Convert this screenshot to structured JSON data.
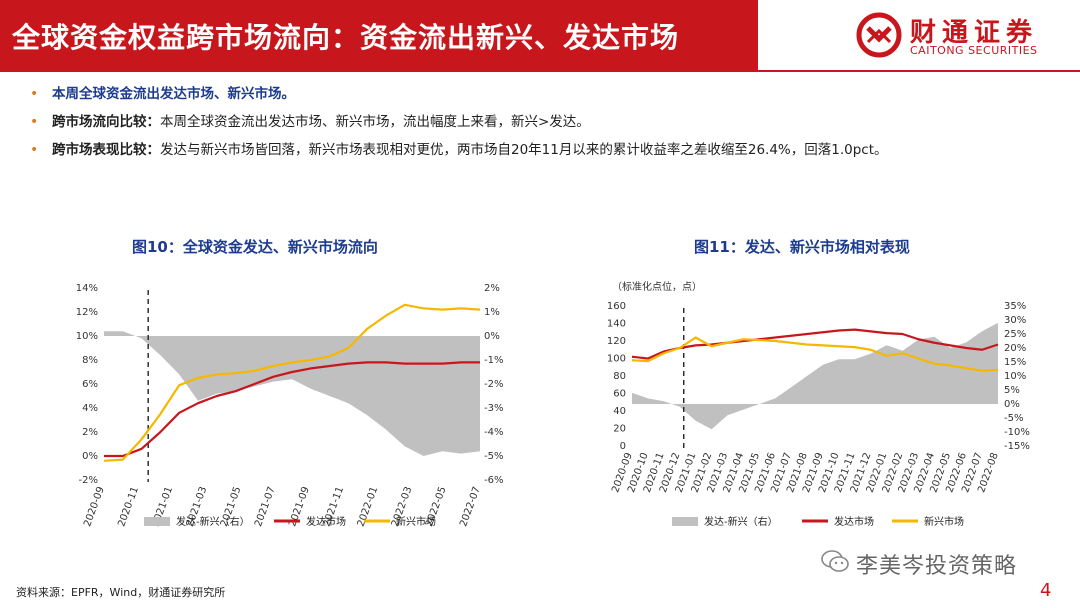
{
  "header": {
    "title": "全球资金权益跨市场流向：资金流出新兴、发达市场",
    "logo_cn": "财通证券",
    "logo_en": "CAITONG SECURITIES",
    "brand_color": "#c8161d"
  },
  "bullets": [
    {
      "label": "本周全球资金流出发达市场、新兴市场。",
      "text": ""
    },
    {
      "label": "跨市场流向比较：",
      "text": "本周全球资金流出发达市场、新兴市场，流出幅度上来看，新兴>发达。"
    },
    {
      "label": "跨市场表现比较：",
      "text": "发达与新兴市场皆回落，新兴市场表现相对更优，两市场自20年11月以来的累计收益率之差收缩至26.4%，回落1.0pct。"
    }
  ],
  "figures": {
    "fig10_title": "图10：全球资金发达、新兴市场流向",
    "fig11_title": "图11：发达、新兴市场相对表现",
    "fig11_unit": "（标准化点位，点）"
  },
  "chart_data": [
    {
      "type": "line",
      "title": "图10：全球资金发达、新兴市场流向",
      "x_ticks": [
        "2020-09",
        "2020-11",
        "2021-01",
        "2021-03",
        "2021-05",
        "2021-07",
        "2021-09",
        "2021-11",
        "2022-01",
        "2022-03",
        "2022-05",
        "2022-07"
      ],
      "y_left_ticks": [
        "-2%",
        "0%",
        "2%",
        "4%",
        "6%",
        "8%",
        "10%",
        "12%",
        "14%"
      ],
      "y_right_ticks": [
        "-6%",
        "-5%",
        "-4%",
        "-3%",
        "-2%",
        "-1%",
        "0%",
        "1%",
        "2%"
      ],
      "ylim_left": [
        -2,
        14
      ],
      "ylim_right": [
        -6,
        2
      ],
      "series": [
        {
          "name": "发达-新兴（右）",
          "axis": "right",
          "style": "area",
          "color": "#c0c0c0",
          "values": [
            0.2,
            0.2,
            -0.1,
            -0.8,
            -1.6,
            -2.7,
            -2.4,
            -2.3,
            -2.1,
            -1.9,
            -1.8,
            -2.2,
            -2.5,
            -2.8,
            -3.3,
            -3.9,
            -4.6,
            -5.0,
            -4.8,
            -4.9,
            -4.8
          ]
        },
        {
          "name": "发达市场",
          "axis": "left",
          "style": "line",
          "color": "#c8161d",
          "values": [
            0.0,
            0.0,
            0.6,
            2.0,
            3.6,
            4.4,
            5.0,
            5.4,
            6.0,
            6.6,
            7.0,
            7.3,
            7.5,
            7.7,
            7.8,
            7.8,
            7.7,
            7.7,
            7.7,
            7.8,
            7.8
          ]
        },
        {
          "name": "新兴市场",
          "axis": "left",
          "style": "line",
          "color": "#f5b800",
          "values": [
            -0.4,
            -0.3,
            1.4,
            3.5,
            5.9,
            6.5,
            6.8,
            6.9,
            7.1,
            7.5,
            7.8,
            8.0,
            8.3,
            9.0,
            10.6,
            11.7,
            12.6,
            12.3,
            12.2,
            12.3,
            12.2
          ]
        }
      ],
      "marker": "2020-11"
    },
    {
      "type": "line",
      "title": "图11：发达、新兴市场相对表现",
      "x_ticks": [
        "2020-09",
        "2020-10",
        "2020-11",
        "2020-12",
        "2021-01",
        "2021-02",
        "2021-03",
        "2021-04",
        "2021-05",
        "2021-06",
        "2021-07",
        "2021-08",
        "2021-09",
        "2021-10",
        "2021-11",
        "2021-12",
        "2022-01",
        "2022-02",
        "2022-03",
        "2022-04",
        "2022-05",
        "2022-06",
        "2022-07",
        "2022-08"
      ],
      "y_left_ticks": [
        "0",
        "20",
        "40",
        "60",
        "80",
        "100",
        "120",
        "140",
        "160"
      ],
      "y_right_ticks": [
        "-15%",
        "-10%",
        "-5%",
        "0%",
        "5%",
        "10%",
        "15%",
        "20%",
        "25%",
        "30%",
        "35%"
      ],
      "ylim_left": [
        0,
        160
      ],
      "ylim_right": [
        -15,
        35
      ],
      "series": [
        {
          "name": "发达-新兴（右）",
          "axis": "right",
          "style": "area",
          "color": "#c0c0c0",
          "values": [
            4,
            2,
            1,
            -1,
            -6,
            -9,
            -4,
            -2,
            0,
            2,
            6,
            10,
            14,
            16,
            16,
            18,
            21,
            19,
            23,
            24,
            20,
            22,
            26,
            29
          ]
        },
        {
          "name": "发达市场",
          "axis": "left",
          "style": "line",
          "color": "#c8161d",
          "values": [
            102,
            100,
            108,
            112,
            115,
            116,
            118,
            120,
            122,
            124,
            126,
            128,
            130,
            132,
            133,
            131,
            129,
            128,
            122,
            118,
            115,
            112,
            110,
            116
          ]
        },
        {
          "name": "新兴市场",
          "axis": "left",
          "style": "line",
          "color": "#f5b800",
          "values": [
            98,
            97,
            106,
            112,
            124,
            114,
            118,
            122,
            121,
            120,
            118,
            116,
            115,
            114,
            113,
            110,
            103,
            106,
            100,
            94,
            92,
            89,
            86,
            87
          ]
        }
      ],
      "marker": "2020-12"
    }
  ],
  "source": "资料来源：EPFR，Wind，财通证券研究所",
  "watermark": "李美岑投资策略",
  "page_number": "4"
}
